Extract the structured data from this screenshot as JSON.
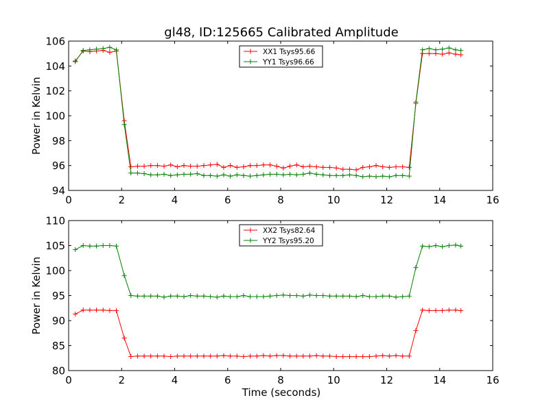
{
  "chart_data": [
    {
      "type": "line",
      "title": "gl48, ID:125665 Calibrated Amplitude",
      "xlabel": "",
      "ylabel": "Power in Kelvin",
      "xlim": [
        0,
        16
      ],
      "ylim": [
        94,
        106
      ],
      "xticks": [
        0,
        2,
        4,
        6,
        8,
        10,
        12,
        14,
        16
      ],
      "yticks": [
        94,
        96,
        98,
        100,
        102,
        104,
        106
      ],
      "legend_position": "top-center",
      "x": [
        0.25,
        0.55,
        0.8,
        1.05,
        1.3,
        1.55,
        1.8,
        2.1,
        2.35,
        2.6,
        2.85,
        3.1,
        3.35,
        3.6,
        3.85,
        4.1,
        4.35,
        4.6,
        4.85,
        5.1,
        5.35,
        5.6,
        5.85,
        6.1,
        6.35,
        6.6,
        6.85,
        7.1,
        7.35,
        7.6,
        7.85,
        8.1,
        8.35,
        8.6,
        8.85,
        9.1,
        9.35,
        9.6,
        9.85,
        10.1,
        10.35,
        10.6,
        10.85,
        11.1,
        11.35,
        11.6,
        11.85,
        12.1,
        12.35,
        12.6,
        12.85,
        13.1,
        13.35,
        13.6,
        13.85,
        14.1,
        14.35,
        14.6,
        14.8
      ],
      "series": [
        {
          "name": "XX1 Tsys95.66",
          "color": "#ff0000",
          "values": [
            104.4,
            105.2,
            105.15,
            105.2,
            105.25,
            105.1,
            105.2,
            99.6,
            95.9,
            95.95,
            95.95,
            96.0,
            96.0,
            95.95,
            96.05,
            95.9,
            96.0,
            95.95,
            95.95,
            96.0,
            96.05,
            96.1,
            95.85,
            96.0,
            95.85,
            95.9,
            96.0,
            96.0,
            96.05,
            96.05,
            95.95,
            95.8,
            95.95,
            96.05,
            95.9,
            95.95,
            95.9,
            95.85,
            95.85,
            95.8,
            95.7,
            95.7,
            95.65,
            95.85,
            95.9,
            96.0,
            95.9,
            95.85,
            95.9,
            95.9,
            95.85,
            101.0,
            105.0,
            105.0,
            105.0,
            104.95,
            105.05,
            104.95,
            104.9
          ]
        },
        {
          "name": "YY1 Tsys96.66",
          "color": "#008000",
          "values": [
            104.35,
            105.25,
            105.3,
            105.35,
            105.4,
            105.5,
            105.3,
            99.3,
            95.4,
            95.4,
            95.35,
            95.25,
            95.25,
            95.3,
            95.2,
            95.25,
            95.3,
            95.3,
            95.35,
            95.2,
            95.2,
            95.15,
            95.25,
            95.15,
            95.25,
            95.2,
            95.15,
            95.2,
            95.25,
            95.3,
            95.3,
            95.25,
            95.3,
            95.25,
            95.3,
            95.4,
            95.3,
            95.25,
            95.2,
            95.2,
            95.2,
            95.25,
            95.2,
            95.1,
            95.15,
            95.1,
            95.15,
            95.1,
            95.2,
            95.2,
            95.15,
            101.1,
            105.3,
            105.4,
            105.3,
            105.35,
            105.45,
            105.3,
            105.25
          ]
        }
      ]
    },
    {
      "type": "line",
      "title": "",
      "xlabel": "Time (seconds)",
      "ylabel": "Power in Kelvin",
      "xlim": [
        0,
        16
      ],
      "ylim": [
        80,
        110
      ],
      "xticks": [
        0,
        2,
        4,
        6,
        8,
        10,
        12,
        14,
        16
      ],
      "yticks": [
        80,
        85,
        90,
        95,
        100,
        105,
        110
      ],
      "legend_position": "top-center",
      "x": [
        0.25,
        0.55,
        0.8,
        1.05,
        1.3,
        1.55,
        1.8,
        2.1,
        2.35,
        2.6,
        2.85,
        3.1,
        3.35,
        3.6,
        3.85,
        4.1,
        4.35,
        4.6,
        4.85,
        5.1,
        5.35,
        5.6,
        5.85,
        6.1,
        6.35,
        6.6,
        6.85,
        7.1,
        7.35,
        7.6,
        7.85,
        8.1,
        8.35,
        8.6,
        8.85,
        9.1,
        9.35,
        9.6,
        9.85,
        10.1,
        10.35,
        10.6,
        10.85,
        11.1,
        11.35,
        11.6,
        11.85,
        12.1,
        12.35,
        12.6,
        12.85,
        13.1,
        13.35,
        13.6,
        13.85,
        14.1,
        14.35,
        14.6,
        14.8
      ],
      "series": [
        {
          "name": "XX2 Tsys82.64",
          "color": "#ff0000",
          "values": [
            91.3,
            92.1,
            92.1,
            92.1,
            92.1,
            92.0,
            92.0,
            86.5,
            82.8,
            82.9,
            82.9,
            82.9,
            82.9,
            82.9,
            82.8,
            82.9,
            82.9,
            82.9,
            82.9,
            82.9,
            82.9,
            82.9,
            83.0,
            82.9,
            82.9,
            82.8,
            82.9,
            82.9,
            83.0,
            82.9,
            83.0,
            83.0,
            82.9,
            82.9,
            82.9,
            82.9,
            83.0,
            82.9,
            82.9,
            82.8,
            82.8,
            82.8,
            82.8,
            82.8,
            82.8,
            82.9,
            83.0,
            82.9,
            83.0,
            82.9,
            82.9,
            88.0,
            92.1,
            92.0,
            92.0,
            92.0,
            92.1,
            92.1,
            92.0
          ]
        },
        {
          "name": "YY2 Tsys95.20",
          "color": "#008000",
          "values": [
            104.2,
            105.0,
            104.9,
            104.9,
            105.0,
            105.0,
            104.9,
            99.0,
            95.0,
            94.9,
            94.9,
            94.9,
            94.9,
            94.7,
            94.9,
            94.9,
            94.8,
            95.0,
            94.9,
            94.9,
            94.8,
            94.7,
            94.9,
            94.8,
            94.8,
            95.0,
            94.8,
            94.8,
            94.8,
            94.9,
            95.0,
            95.1,
            95.0,
            95.0,
            94.9,
            95.1,
            95.0,
            95.0,
            94.9,
            94.9,
            94.9,
            94.9,
            94.8,
            95.0,
            94.8,
            94.8,
            94.9,
            94.9,
            94.7,
            94.8,
            94.9,
            100.6,
            104.9,
            104.8,
            105.0,
            104.8,
            105.0,
            105.1,
            104.9
          ]
        }
      ]
    }
  ]
}
